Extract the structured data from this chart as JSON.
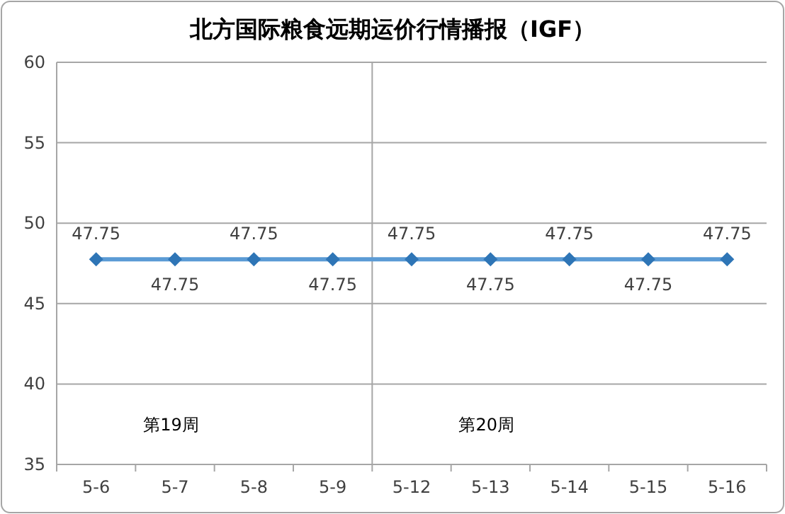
{
  "chart_data": {
    "type": "line",
    "title": "北方国际粮食远期运价行情播报（IGF）",
    "categories": [
      "5-6",
      "5-7",
      "5-8",
      "5-9",
      "5-12",
      "5-13",
      "5-14",
      "5-15",
      "5-16"
    ],
    "series": [
      {
        "color": "#5b9bd5",
        "values": [
          47.75,
          47.75,
          47.75,
          47.75,
          47.75,
          47.75,
          47.75,
          47.75,
          47.75
        ]
      }
    ],
    "ylim": [
      35,
      60
    ],
    "yticks": [
      35,
      40,
      45,
      50,
      55,
      60
    ],
    "grid": "y",
    "marker": "diamond",
    "line_style": "solid",
    "data_labels": true,
    "annotations": [
      "第19周",
      "第20周"
    ]
  }
}
